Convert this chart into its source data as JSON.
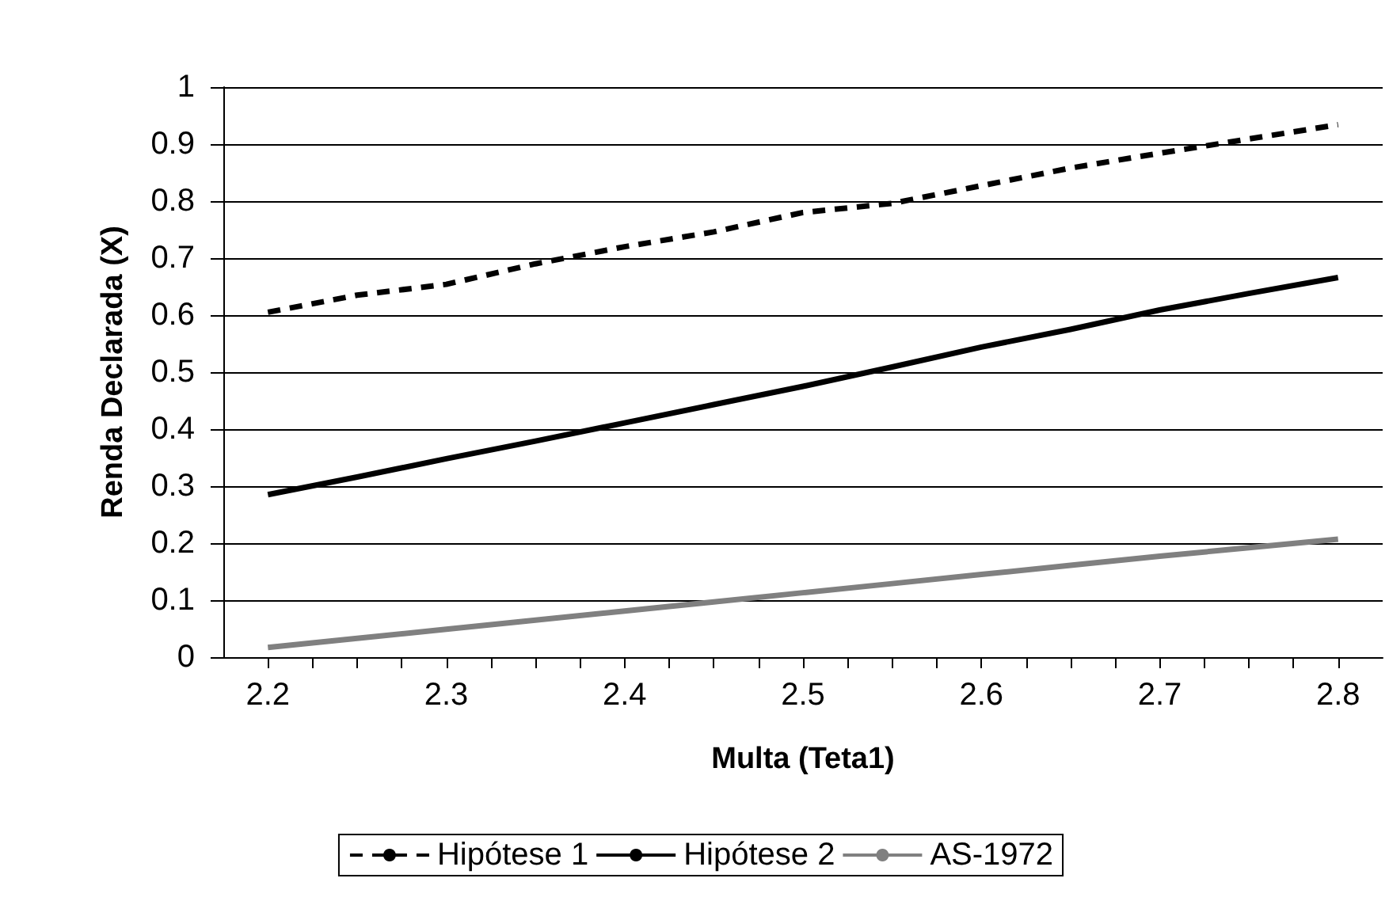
{
  "chart_data": {
    "type": "line",
    "xlabel": "Multa (Teta1)",
    "ylabel": "Renda Declarada (X)",
    "xlim": [
      2.175,
      2.825
    ],
    "xticks": [
      2.2,
      {
        "value": 2.225,
        "label": null
      },
      {
        "value": 2.25,
        "label": null
      },
      {
        "value": 2.275,
        "label": null
      },
      2.3,
      {
        "value": 2.325,
        "label": null
      },
      {
        "value": 2.35,
        "label": null
      },
      {
        "value": 2.375,
        "label": null
      },
      2.4,
      {
        "value": 2.425,
        "label": null
      },
      {
        "value": 2.45,
        "label": null
      },
      {
        "value": 2.475,
        "label": null
      },
      2.5,
      {
        "value": 2.525,
        "label": null
      },
      {
        "value": 2.55,
        "label": null
      },
      {
        "value": 2.575,
        "label": null
      },
      2.6,
      {
        "value": 2.625,
        "label": null
      },
      {
        "value": 2.65,
        "label": null
      },
      {
        "value": 2.675,
        "label": null
      },
      2.7,
      {
        "value": 2.725,
        "label": null
      },
      {
        "value": 2.75,
        "label": null
      },
      {
        "value": 2.775,
        "label": null
      },
      2.8
    ],
    "ylim": [
      0,
      1
    ],
    "yticks": [
      0,
      0.1,
      0.2,
      0.3,
      0.4,
      0.5,
      0.6,
      0.7,
      0.8,
      0.9,
      1
    ],
    "grid": "y",
    "legend": "bottom",
    "marker": "none",
    "x": [
      2.2,
      2.25,
      2.3,
      2.35,
      2.4,
      2.45,
      2.5,
      2.55,
      2.6,
      2.65,
      2.7,
      2.75,
      2.8
    ],
    "series": [
      {
        "name": "Hipótese 1",
        "color": "#000000",
        "line_style": "dashed",
        "values": [
          0.605,
          0.635,
          0.654,
          0.69,
          0.72,
          0.746,
          0.78,
          0.796,
          0.827,
          0.858,
          0.884,
          0.909,
          0.934
        ]
      },
      {
        "name": "Hipótese 2",
        "color": "#000000",
        "line_style": "solid",
        "values": [
          0.285,
          0.316,
          0.348,
          0.379,
          0.411,
          0.443,
          0.475,
          0.509,
          0.544,
          0.575,
          0.609,
          0.638,
          0.666
        ]
      },
      {
        "name": "AS-1972",
        "color": "#808080",
        "line_style": "solid",
        "values": [
          0.017,
          0.033,
          0.049,
          0.065,
          0.081,
          0.097,
          0.113,
          0.129,
          0.145,
          0.161,
          0.177,
          0.192,
          0.207
        ]
      }
    ]
  }
}
